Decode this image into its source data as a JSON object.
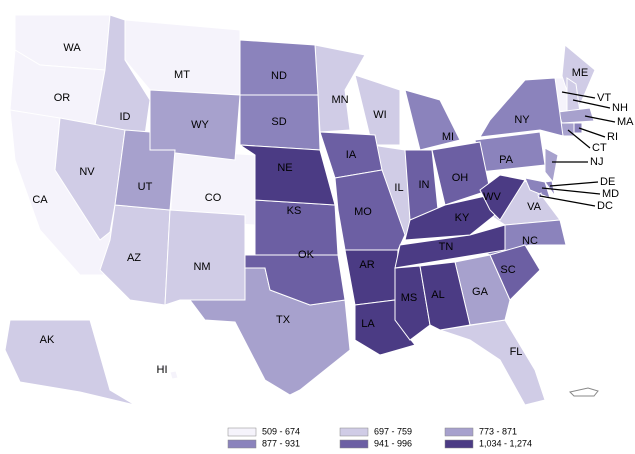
{
  "legend": {
    "bins": [
      {
        "label": "509 - 674",
        "color": "#f5f3fb",
        "states": [
          "WA",
          "OR",
          "CA",
          "MT",
          "CO",
          "VT",
          "HI"
        ]
      },
      {
        "label": "697 - 759",
        "color": "#d0cce6",
        "states": [
          "ID",
          "NV",
          "AZ",
          "NM",
          "MN",
          "WI",
          "IL",
          "ME",
          "NH",
          "FL",
          "VA",
          "AK"
        ]
      },
      {
        "label": "773 - 871",
        "color": "#a7a1cd",
        "states": [
          "WY",
          "UT",
          "TX",
          "GA",
          "MA",
          "CT",
          "NJ"
        ]
      },
      {
        "label": "877 - 931",
        "color": "#8b83bc",
        "states": [
          "ND",
          "SD",
          "MI",
          "NY",
          "PA",
          "NC",
          "RI",
          "DE",
          "MD",
          "DC"
        ]
      },
      {
        "label": "941 - 996",
        "color": "#6c5fa3",
        "states": [
          "KS",
          "IA",
          "MO",
          "OK",
          "IN",
          "OH",
          "SC"
        ]
      },
      {
        "label": "1,034 - 1,274",
        "color": "#4b3b84",
        "states": [
          "NE",
          "AR",
          "LA",
          "MS",
          "AL",
          "TN",
          "KY",
          "WV"
        ]
      }
    ]
  }
}
